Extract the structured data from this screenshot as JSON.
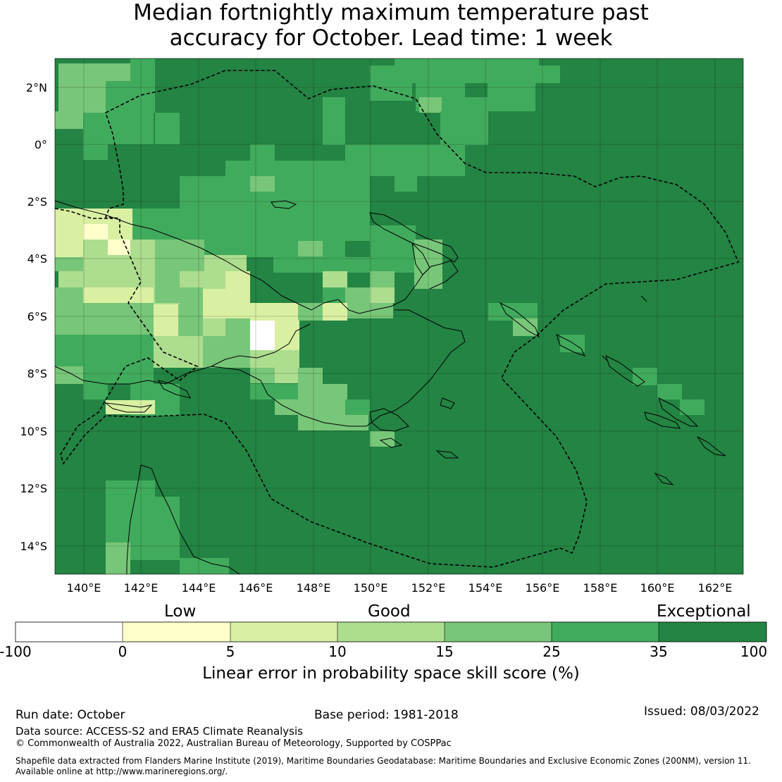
{
  "title_line1": "Median fortnightly maximum temperature past",
  "title_line2": "accuracy for October. Lead time: 1 week",
  "map": {
    "lon_range": [
      139,
      163
    ],
    "lat_range": [
      -15,
      3
    ],
    "lon_ticks": [
      "140°E",
      "142°E",
      "144°E",
      "146°E",
      "148°E",
      "150°E",
      "152°E",
      "154°E",
      "156°E",
      "158°E",
      "160°E",
      "162°E"
    ],
    "lat_ticks": [
      "2°N",
      "0°",
      "2°S",
      "4°S",
      "6°S",
      "8°S",
      "10°S",
      "12°S",
      "14°S"
    ]
  },
  "colorbar": {
    "categories": [
      "Low",
      "Good",
      "Exceptional"
    ],
    "ticks": [
      "-100",
      "0",
      "5",
      "10",
      "15",
      "25",
      "35",
      "100"
    ],
    "colors": [
      "#ffffff",
      "#ffffcc",
      "#d9f0a3",
      "#addd8e",
      "#78c679",
      "#41ab5d",
      "#238443"
    ],
    "title": "Linear error in probability space skill score (%)"
  },
  "footer": {
    "run_date": "Run date: October",
    "base_period": "Base period: 1981-2018",
    "issued": "Issued: 08/03/2022",
    "data_source": "Data source: ACCESS-S2 and ERA5 Climate Reanalysis",
    "copyright": "© Commonwealth of Australia 2022, Australian Bureau of Meteorology, Supported by COSPPac",
    "shapefile_line1": "Shapefile data extracted from Flanders Marine Institute (2019), Maritime Boundaries Geodatabase: Maritime Boundaries and Exclusive Economic Zones (200NM), version 11.",
    "shapefile_line2": "Available online at http://www.marineregions.org/."
  }
}
